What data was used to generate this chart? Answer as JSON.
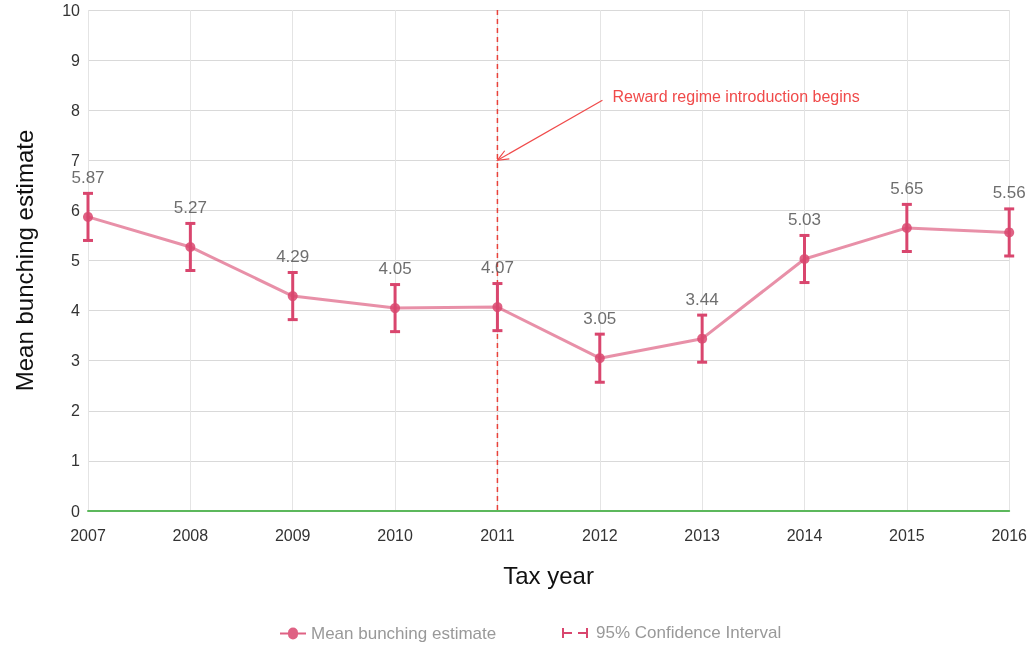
{
  "chart_data": {
    "type": "line",
    "xlabel": "Tax year",
    "ylabel": "Mean bunching estimate",
    "categories": [
      "2007",
      "2008",
      "2009",
      "2010",
      "2011",
      "2012",
      "2013",
      "2014",
      "2015",
      "2016"
    ],
    "series": [
      {
        "name": "Mean bunching estimate",
        "color": "#d9466e",
        "values": [
          5.87,
          5.27,
          4.29,
          4.05,
          4.07,
          3.05,
          3.44,
          5.03,
          5.65,
          5.56
        ],
        "errors": [
          0.47,
          0.47,
          0.47,
          0.47,
          0.47,
          0.48,
          0.47,
          0.47,
          0.47,
          0.47
        ]
      }
    ],
    "ylim": [
      0,
      10
    ],
    "yticks": [
      0,
      1,
      2,
      3,
      4,
      5,
      6,
      7,
      8,
      9,
      10
    ],
    "grid": true,
    "legend": "bottom",
    "marker": "circle",
    "line_style": "solid",
    "data_labels": true,
    "ref_lines": [
      {
        "axis": "x",
        "value": "2011",
        "color": "#e8423a",
        "line_style": "dashed"
      }
    ],
    "annotations": [
      {
        "text": "Reward regime introduction begins",
        "x": "2011",
        "y": 7
      },
      "95% Confidence Interval"
    ]
  }
}
